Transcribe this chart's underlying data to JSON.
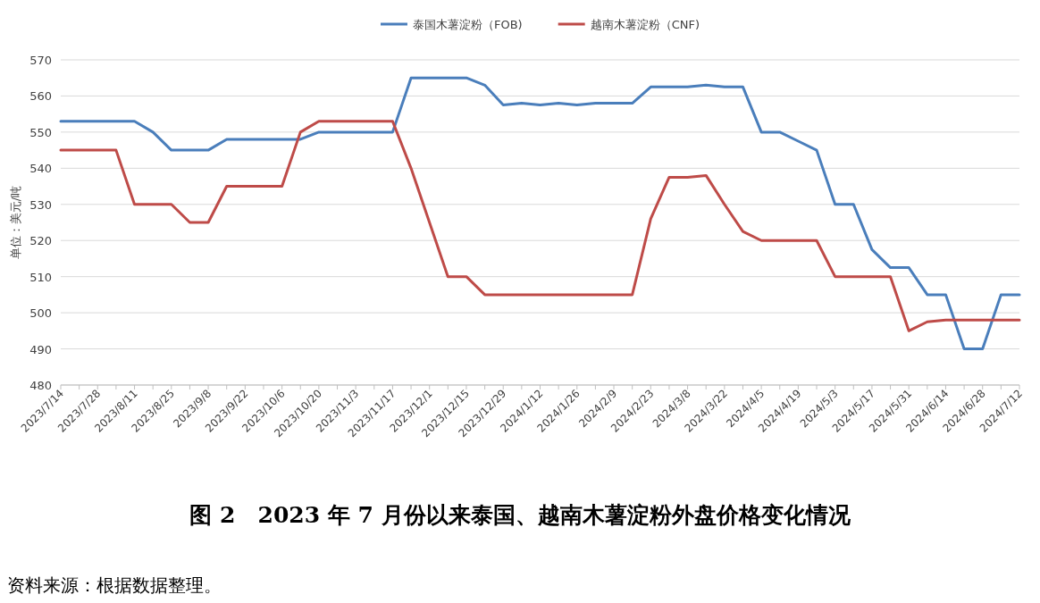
{
  "chart_data": {
    "type": "line",
    "title": "图 2　2023 年 7 月份以来泰国、越南木薯淀粉外盘价格变化情况",
    "ylabel": "单位：美元/吨",
    "annotations": [
      "资料来源：根据数据整理。"
    ],
    "categories": [
      "2023/7/14",
      null,
      "2023/7/28",
      null,
      "2023/8/11",
      null,
      "2023/8/25",
      null,
      "2023/9/8",
      null,
      "2023/9/22",
      null,
      "2023/10/6",
      null,
      "2023/10/20",
      null,
      "2023/11/3",
      null,
      "2023/11/17",
      null,
      "2023/12/1",
      null,
      "2023/12/15",
      null,
      "2023/12/29",
      null,
      "2024/1/12",
      null,
      "2024/1/26",
      null,
      "2024/2/9",
      null,
      "2024/2/23",
      null,
      "2024/3/8",
      null,
      "2024/3/22",
      null,
      "2024/4/5",
      null,
      "2024/4/19",
      null,
      "2024/5/3",
      null,
      "2024/5/17",
      null,
      "2024/5/31",
      null,
      "2024/6/14",
      null,
      "2024/6/28",
      null,
      "2024/7/12"
    ],
    "series": [
      {
        "name": "泰国木薯淀粉（FOB)",
        "color": "#4a7ebb",
        "values": [
          553,
          553,
          553,
          553,
          553,
          550,
          545,
          545,
          545,
          548,
          548,
          548,
          548,
          548,
          550,
          550,
          550,
          550,
          550,
          565,
          565,
          565,
          565,
          563,
          557.5,
          558,
          557.5,
          558,
          557.5,
          558,
          558,
          558,
          562.5,
          562.5,
          562.5,
          563,
          562.5,
          562.5,
          550,
          550,
          547.5,
          545,
          530,
          530,
          517.5,
          512.5,
          512.5,
          505,
          505,
          490,
          490,
          505,
          505
        ]
      },
      {
        "name": "越南木薯淀粉（CNF)",
        "color": "#be4b48",
        "values": [
          545,
          545,
          545,
          545,
          530,
          530,
          530,
          525,
          525,
          535,
          535,
          535,
          535,
          550,
          553,
          553,
          553,
          553,
          553,
          540,
          525,
          510,
          510,
          505,
          505,
          505,
          505,
          505,
          505,
          505,
          505,
          505,
          526,
          537.5,
          537.5,
          538,
          530,
          522.5,
          520,
          520,
          520,
          520,
          510,
          510,
          510,
          510,
          495,
          497.5,
          498,
          498,
          498,
          498,
          498
        ]
      }
    ],
    "ylim": [
      480,
      570
    ],
    "yticks": [
      480,
      490,
      500,
      510,
      520,
      530,
      540,
      550,
      560,
      570
    ],
    "grid": "y",
    "legend": "top",
    "marker": "none",
    "line_style": "solid"
  }
}
